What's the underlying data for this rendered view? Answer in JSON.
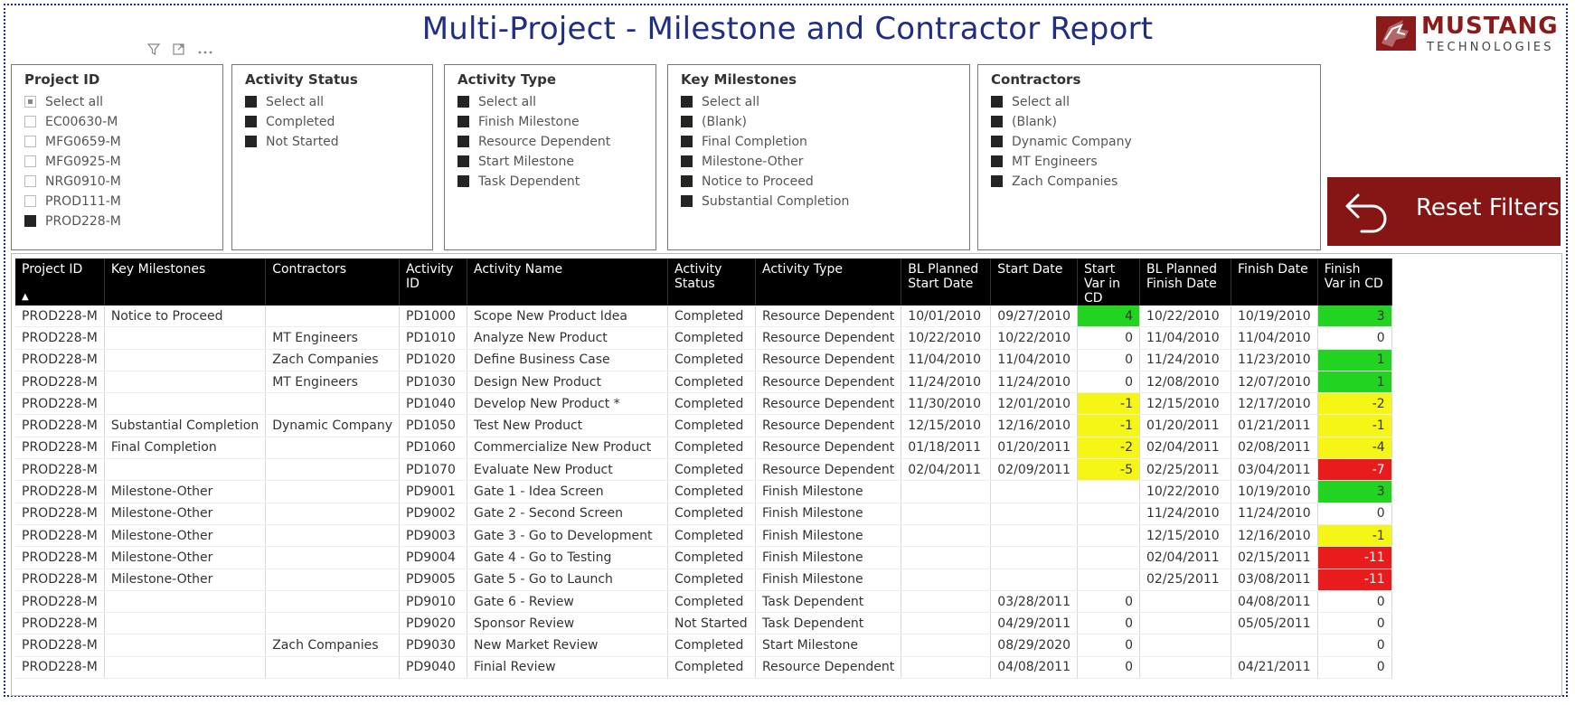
{
  "report_title": "Multi-Project - Milestone and Contractor Report",
  "logo": {
    "word1": "MUSTANG",
    "word2": "TECHNOLOGIES"
  },
  "visual_icons": [
    "filter-icon",
    "focus-mode-icon",
    "more-options-icon"
  ],
  "slicers": {
    "project_id": {
      "title": "Project ID",
      "items": [
        {
          "label": "Select all",
          "state": "partial"
        },
        {
          "label": "EC00630-M",
          "state": "off"
        },
        {
          "label": "MFG0659-M",
          "state": "off"
        },
        {
          "label": "MFG0925-M",
          "state": "off"
        },
        {
          "label": "NRG0910-M",
          "state": "off"
        },
        {
          "label": "PROD111-M",
          "state": "off"
        },
        {
          "label": "PROD228-M",
          "state": "on"
        }
      ]
    },
    "activity_status": {
      "title": "Activity Status",
      "items": [
        {
          "label": "Select all",
          "state": "on"
        },
        {
          "label": "Completed",
          "state": "on"
        },
        {
          "label": "Not Started",
          "state": "on"
        }
      ]
    },
    "activity_type": {
      "title": "Activity Type",
      "items": [
        {
          "label": "Select all",
          "state": "on"
        },
        {
          "label": "Finish Milestone",
          "state": "on"
        },
        {
          "label": "Resource Dependent",
          "state": "on"
        },
        {
          "label": "Start Milestone",
          "state": "on"
        },
        {
          "label": "Task Dependent",
          "state": "on"
        }
      ]
    },
    "key_milestones": {
      "title": "Key Milestones",
      "items": [
        {
          "label": "Select all",
          "state": "on"
        },
        {
          "label": "(Blank)",
          "state": "on"
        },
        {
          "label": "Final Completion",
          "state": "on"
        },
        {
          "label": "Milestone-Other",
          "state": "on"
        },
        {
          "label": "Notice to Proceed",
          "state": "on"
        },
        {
          "label": "Substantial Completion",
          "state": "on"
        }
      ]
    },
    "contractors": {
      "title": "Contractors",
      "items": [
        {
          "label": "Select all",
          "state": "on"
        },
        {
          "label": "(Blank)",
          "state": "on"
        },
        {
          "label": "Dynamic Company",
          "state": "on"
        },
        {
          "label": "MT Engineers",
          "state": "on"
        },
        {
          "label": "Zach Companies",
          "state": "on"
        }
      ]
    }
  },
  "reset_button": {
    "label": "Reset Filters"
  },
  "table": {
    "sort_indicator": "▲",
    "columns": [
      "Project ID",
      "Key Milestones",
      "Contractors",
      "Activity ID",
      "Activity Name",
      "Activity Status",
      "Activity Type",
      "BL Planned Start Date",
      "Start Date",
      "Start Var in CD",
      "BL Planned Finish Date",
      "Finish Date",
      "Finish Var in CD"
    ],
    "rows": [
      {
        "project_id": "PROD228-M",
        "key_milestone": "Notice to Proceed",
        "contractor": "",
        "activity_id": "PD1000",
        "activity_name": "Scope New Product Idea",
        "status": "Completed",
        "type": "Resource Dependent",
        "bl_start": "10/01/2010",
        "start": "09/27/2010",
        "start_var": "4",
        "start_var_color": "green",
        "bl_finish": "10/22/2010",
        "finish": "10/19/2010",
        "finish_var": "3",
        "finish_var_color": "green"
      },
      {
        "project_id": "PROD228-M",
        "key_milestone": "",
        "contractor": "MT Engineers",
        "activity_id": "PD1010",
        "activity_name": "Analyze New Product",
        "status": "Completed",
        "type": "Resource Dependent",
        "bl_start": "10/22/2010",
        "start": "10/22/2010",
        "start_var": "0",
        "start_var_color": "none",
        "bl_finish": "11/04/2010",
        "finish": "11/04/2010",
        "finish_var": "0",
        "finish_var_color": "none"
      },
      {
        "project_id": "PROD228-M",
        "key_milestone": "",
        "contractor": "Zach Companies",
        "activity_id": "PD1020",
        "activity_name": "Define Business Case",
        "status": "Completed",
        "type": "Resource Dependent",
        "bl_start": "11/04/2010",
        "start": "11/04/2010",
        "start_var": "0",
        "start_var_color": "none",
        "bl_finish": "11/24/2010",
        "finish": "11/23/2010",
        "finish_var": "1",
        "finish_var_color": "green"
      },
      {
        "project_id": "PROD228-M",
        "key_milestone": "",
        "contractor": "MT Engineers",
        "activity_id": "PD1030",
        "activity_name": "Design New Product",
        "status": "Completed",
        "type": "Resource Dependent",
        "bl_start": "11/24/2010",
        "start": "11/24/2010",
        "start_var": "0",
        "start_var_color": "none",
        "bl_finish": "12/08/2010",
        "finish": "12/07/2010",
        "finish_var": "1",
        "finish_var_color": "green"
      },
      {
        "project_id": "PROD228-M",
        "key_milestone": "",
        "contractor": "",
        "activity_id": "PD1040",
        "activity_name": "Develop New Product *",
        "status": "Completed",
        "type": "Resource Dependent",
        "bl_start": "11/30/2010",
        "start": "12/01/2010",
        "start_var": "-1",
        "start_var_color": "yellow",
        "bl_finish": "12/15/2010",
        "finish": "12/17/2010",
        "finish_var": "-2",
        "finish_var_color": "yellow"
      },
      {
        "project_id": "PROD228-M",
        "key_milestone": "Substantial Completion",
        "contractor": "Dynamic Company",
        "activity_id": "PD1050",
        "activity_name": "Test New Product",
        "status": "Completed",
        "type": "Resource Dependent",
        "bl_start": "12/15/2010",
        "start": "12/16/2010",
        "start_var": "-1",
        "start_var_color": "yellow",
        "bl_finish": "01/20/2011",
        "finish": "01/21/2011",
        "finish_var": "-1",
        "finish_var_color": "yellow"
      },
      {
        "project_id": "PROD228-M",
        "key_milestone": "Final Completion",
        "contractor": "",
        "activity_id": "PD1060",
        "activity_name": "Commercialize New Product",
        "status": "Completed",
        "type": "Resource Dependent",
        "bl_start": "01/18/2011",
        "start": "01/20/2011",
        "start_var": "-2",
        "start_var_color": "yellow",
        "bl_finish": "02/04/2011",
        "finish": "02/08/2011",
        "finish_var": "-4",
        "finish_var_color": "yellow"
      },
      {
        "project_id": "PROD228-M",
        "key_milestone": "",
        "contractor": "",
        "activity_id": "PD1070",
        "activity_name": "Evaluate New Product",
        "status": "Completed",
        "type": "Resource Dependent",
        "bl_start": "02/04/2011",
        "start": "02/09/2011",
        "start_var": "-5",
        "start_var_color": "yellow",
        "bl_finish": "02/25/2011",
        "finish": "03/04/2011",
        "finish_var": "-7",
        "finish_var_color": "red"
      },
      {
        "project_id": "PROD228-M",
        "key_milestone": "Milestone-Other",
        "contractor": "",
        "activity_id": "PD9001",
        "activity_name": "Gate 1 - Idea Screen",
        "status": "Completed",
        "type": "Finish Milestone",
        "bl_start": "",
        "start": "",
        "start_var": "",
        "start_var_color": "none",
        "bl_finish": "10/22/2010",
        "finish": "10/19/2010",
        "finish_var": "3",
        "finish_var_color": "green"
      },
      {
        "project_id": "PROD228-M",
        "key_milestone": "Milestone-Other",
        "contractor": "",
        "activity_id": "PD9002",
        "activity_name": "Gate 2 - Second Screen",
        "status": "Completed",
        "type": "Finish Milestone",
        "bl_start": "",
        "start": "",
        "start_var": "",
        "start_var_color": "none",
        "bl_finish": "11/24/2010",
        "finish": "11/24/2010",
        "finish_var": "0",
        "finish_var_color": "none"
      },
      {
        "project_id": "PROD228-M",
        "key_milestone": "Milestone-Other",
        "contractor": "",
        "activity_id": "PD9003",
        "activity_name": "Gate 3 - Go to Development",
        "status": "Completed",
        "type": "Finish Milestone",
        "bl_start": "",
        "start": "",
        "start_var": "",
        "start_var_color": "none",
        "bl_finish": "12/15/2010",
        "finish": "12/16/2010",
        "finish_var": "-1",
        "finish_var_color": "yellow"
      },
      {
        "project_id": "PROD228-M",
        "key_milestone": "Milestone-Other",
        "contractor": "",
        "activity_id": "PD9004",
        "activity_name": "Gate 4 - Go to Testing",
        "status": "Completed",
        "type": "Finish Milestone",
        "bl_start": "",
        "start": "",
        "start_var": "",
        "start_var_color": "none",
        "bl_finish": "02/04/2011",
        "finish": "02/15/2011",
        "finish_var": "-11",
        "finish_var_color": "red"
      },
      {
        "project_id": "PROD228-M",
        "key_milestone": "Milestone-Other",
        "contractor": "",
        "activity_id": "PD9005",
        "activity_name": "Gate 5 - Go to Launch",
        "status": "Completed",
        "type": "Finish Milestone",
        "bl_start": "",
        "start": "",
        "start_var": "",
        "start_var_color": "none",
        "bl_finish": "02/25/2011",
        "finish": "03/08/2011",
        "finish_var": "-11",
        "finish_var_color": "red"
      },
      {
        "project_id": "PROD228-M",
        "key_milestone": "",
        "contractor": "",
        "activity_id": "PD9010",
        "activity_name": "Gate 6 - Review",
        "status": "Completed",
        "type": "Task Dependent",
        "bl_start": "",
        "start": "03/28/2011",
        "start_var": "0",
        "start_var_color": "none",
        "bl_finish": "",
        "finish": "04/08/2011",
        "finish_var": "0",
        "finish_var_color": "none"
      },
      {
        "project_id": "PROD228-M",
        "key_milestone": "",
        "contractor": "",
        "activity_id": "PD9020",
        "activity_name": "Sponsor Review",
        "status": "Not Started",
        "type": "Task Dependent",
        "bl_start": "",
        "start": "04/29/2011",
        "start_var": "0",
        "start_var_color": "none",
        "bl_finish": "",
        "finish": "05/05/2011",
        "finish_var": "0",
        "finish_var_color": "none"
      },
      {
        "project_id": "PROD228-M",
        "key_milestone": "",
        "contractor": "Zach Companies",
        "activity_id": "PD9030",
        "activity_name": "New Market Review",
        "status": "Completed",
        "type": "Start Milestone",
        "bl_start": "",
        "start": "08/29/2020",
        "start_var": "0",
        "start_var_color": "none",
        "bl_finish": "",
        "finish": "",
        "finish_var": "0",
        "finish_var_color": "none"
      },
      {
        "project_id": "PROD228-M",
        "key_milestone": "",
        "contractor": "",
        "activity_id": "PD9040",
        "activity_name": "Finial Review",
        "status": "Completed",
        "type": "Resource Dependent",
        "bl_start": "",
        "start": "04/08/2011",
        "start_var": "0",
        "start_var_color": "none",
        "bl_finish": "",
        "finish": "04/21/2011",
        "finish_var": "0",
        "finish_var_color": "none"
      }
    ]
  },
  "colors": {
    "title": "#1f2d83",
    "brand": "#861515",
    "var_green": "#22d322",
    "var_yellow": "#f5f516",
    "var_red": "#e81c1c",
    "frame_border": "#1c2a8c"
  }
}
